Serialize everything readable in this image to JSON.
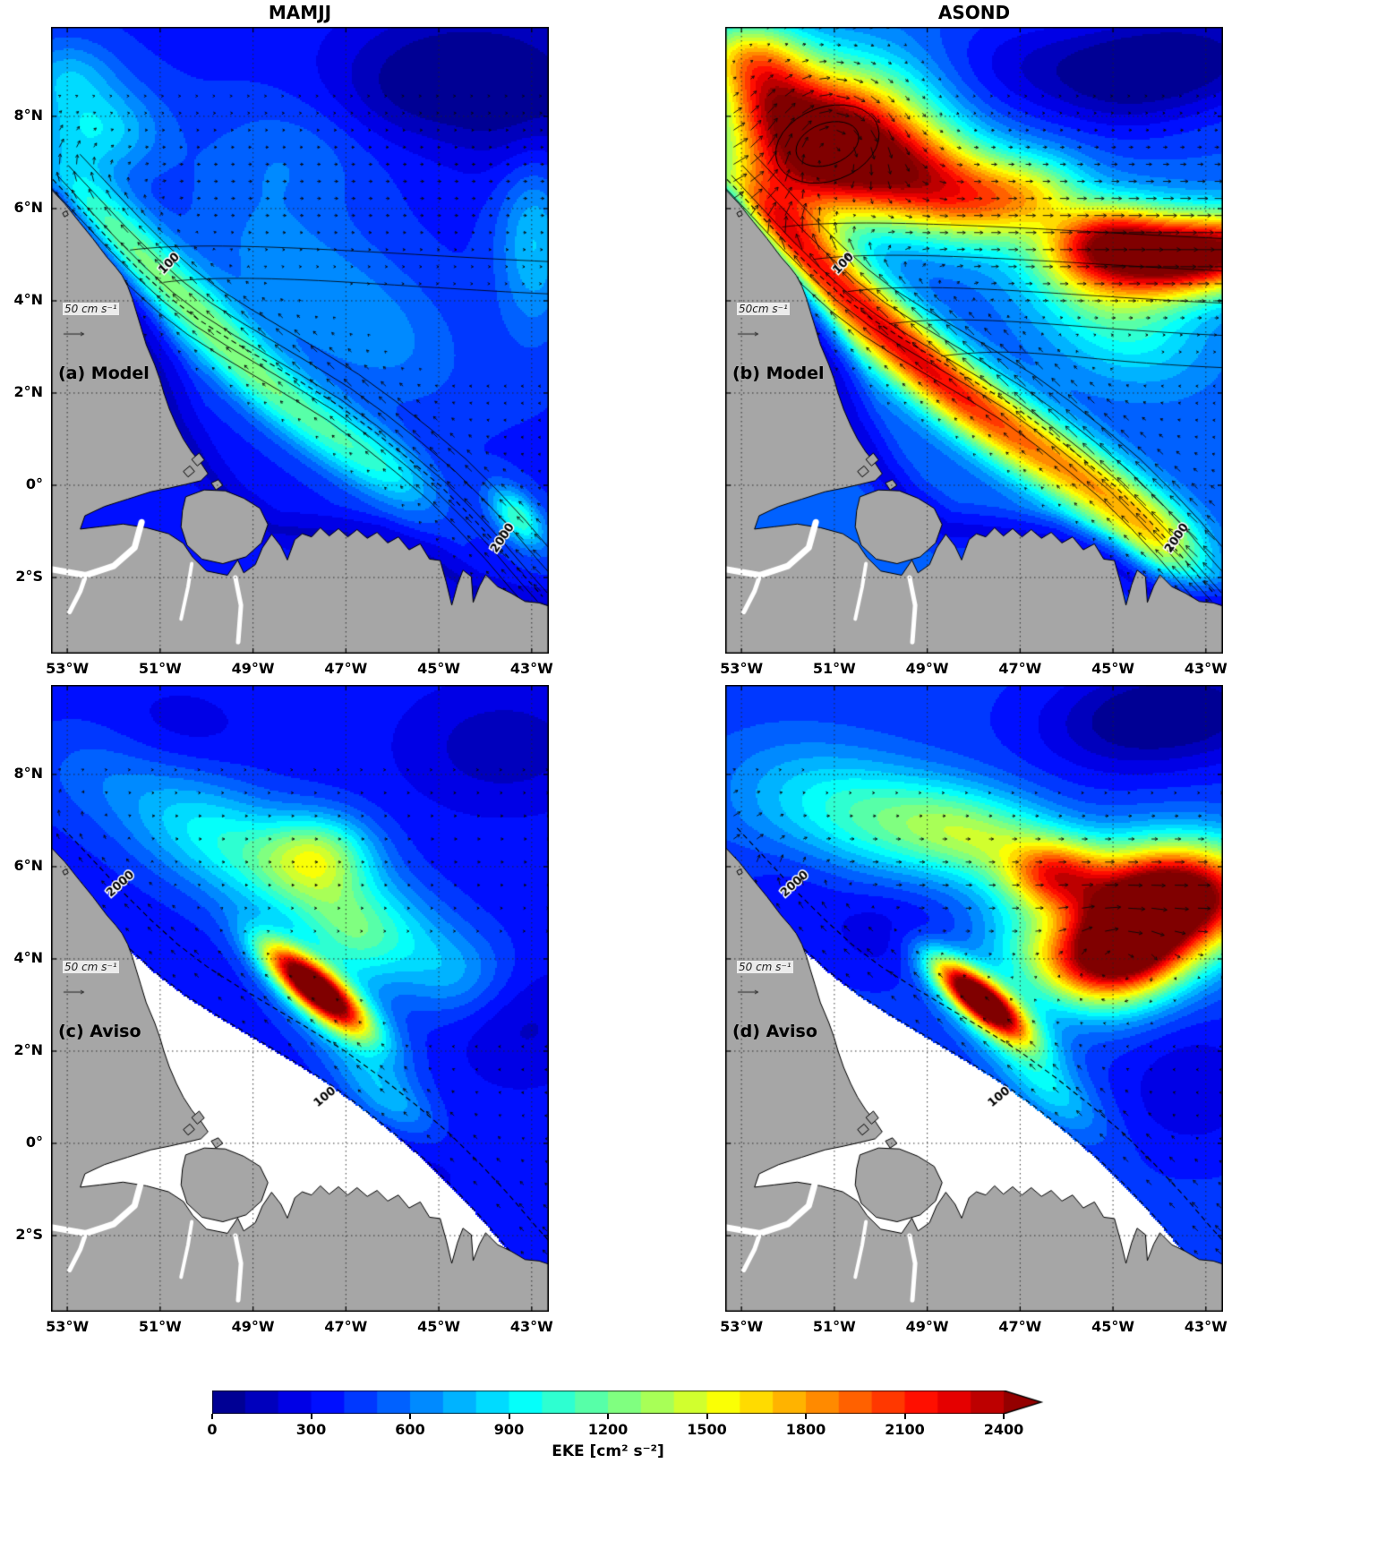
{
  "figure": {
    "column_titles": [
      "MAMJJ",
      "ASOND"
    ],
    "axes": {
      "lon_ticks": [
        "53°W",
        "51°W",
        "49°W",
        "47°W",
        "45°W",
        "43°W"
      ],
      "lon_values": [
        -53,
        -51,
        -49,
        -47,
        -45,
        -43
      ],
      "lat_ticks": [
        "8°N",
        "6°N",
        "4°N",
        "2°N",
        "0°",
        "2°S"
      ],
      "lat_values": [
        8,
        6,
        4,
        2,
        0,
        -2
      ]
    },
    "colorbar": {
      "label": "EKE [cm² s⁻²]",
      "ticks": [
        0,
        300,
        600,
        900,
        1200,
        1500,
        1800,
        2100,
        2400
      ],
      "vmin": 0,
      "vmax": 2400,
      "level_step": 100,
      "extend": "max"
    },
    "colors": {
      "land": "#a6a6a6",
      "coastline": "#000000",
      "no_data": "#ffffff",
      "grid": "#222222",
      "arrow": "#0a0a0a"
    }
  },
  "chart_data": {
    "type": "heatmap",
    "variable": "EKE",
    "units": "cm² s⁻²",
    "colormap": "jet",
    "lon_range": [
      -53.35,
      -42.63
    ],
    "lat_range": [
      -3.65,
      9.94
    ],
    "seasons": [
      "MAMJJ",
      "ASOND"
    ],
    "datasets": [
      "Model",
      "Aviso"
    ],
    "panels": [
      {
        "id": "a",
        "row": 0,
        "col": 0,
        "label": "(a) Model",
        "season": "MAMJJ",
        "dataset": "Model",
        "scale_label": "50 cm s⁻¹",
        "scale_value_cm_s": 50,
        "mask_shelf": false,
        "base_eke": 380,
        "arrow_step": 0.37,
        "contour_labels": [
          {
            "text": "100",
            "lon": -50.8,
            "lat": 4.8,
            "rot": -46
          },
          {
            "text": "2000",
            "lon": -43.62,
            "lat": -1.15,
            "rot": -56
          }
        ],
        "east_lines": [
          4.4,
          5.1
        ],
        "features": [
          [
            -52.55,
            6.2,
            0.8,
            0.45,
            137,
            420
          ],
          [
            -51.7,
            5.3,
            0.8,
            0.45,
            137,
            470
          ],
          [
            -50.9,
            4.45,
            0.85,
            0.45,
            137,
            450
          ],
          [
            -50.1,
            3.6,
            0.85,
            0.45,
            137,
            490
          ],
          [
            -49.3,
            2.75,
            0.85,
            0.45,
            137,
            450
          ],
          [
            -48.5,
            2.0,
            0.85,
            0.45,
            137,
            420
          ],
          [
            -47.6,
            1.3,
            0.85,
            0.45,
            137,
            390
          ],
          [
            -46.7,
            0.7,
            0.85,
            0.45,
            137,
            370
          ],
          [
            -45.8,
            0.2,
            0.85,
            0.45,
            137,
            340
          ],
          [
            -52.4,
            7.7,
            0.95,
            0.7,
            0,
            500
          ],
          [
            -53.0,
            8.9,
            0.7,
            0.55,
            0,
            340
          ],
          [
            -48.4,
            4.8,
            1.7,
            1.1,
            150,
            230
          ],
          [
            -46.3,
            3.2,
            1.5,
            1.0,
            150,
            220
          ],
          [
            -48.2,
            7.2,
            1.3,
            0.9,
            0,
            190
          ],
          [
            -42.95,
            5.3,
            1.4,
            0.55,
            90,
            430
          ],
          [
            -43.3,
            -0.7,
            0.55,
            0.3,
            130,
            720
          ],
          [
            -44.3,
            9.2,
            1.9,
            1.0,
            0,
            -300
          ],
          [
            -42.9,
            7.8,
            1.2,
            1.0,
            0,
            -230
          ],
          [
            -45.6,
            8.4,
            1.3,
            0.8,
            0,
            -170
          ]
        ],
        "circulation": {
          "jet": 26,
          "jet_center": 0.85,
          "jet_width": 0.6,
          "retro_lat": 5.2,
          "retro_frac": 0.55,
          "necc": 9,
          "necc_lat": 6.4,
          "necc_width": 1.2,
          "sec": 5,
          "east_jet": null,
          "vortices": []
        }
      },
      {
        "id": "b",
        "row": 0,
        "col": 1,
        "label": "(b) Model",
        "season": "ASOND",
        "dataset": "Model",
        "scale_label": "50cm s⁻¹",
        "scale_value_cm_s": 50,
        "mask_shelf": false,
        "base_eke": 520,
        "arrow_step": 0.37,
        "contour_labels": [
          {
            "text": "100",
            "lon": -50.8,
            "lat": 4.8,
            "rot": -46
          },
          {
            "text": "2000",
            "lon": -43.62,
            "lat": -1.15,
            "rot": -56
          }
        ],
        "east_lines": [
          2.8,
          3.5,
          4.2,
          4.9,
          5.6
        ],
        "features": [
          [
            -51.15,
            7.4,
            1.35,
            1.05,
            15,
            2300
          ],
          [
            -52.4,
            8.5,
            0.75,
            0.7,
            0,
            950
          ],
          [
            -52.95,
            9.35,
            0.8,
            0.55,
            0,
            800
          ],
          [
            -49.3,
            6.7,
            1.0,
            0.75,
            0,
            1150
          ],
          [
            -47.9,
            6.15,
            0.95,
            0.7,
            0,
            1000
          ],
          [
            -46.6,
            6.3,
            0.8,
            0.6,
            0,
            650
          ],
          [
            -43.3,
            5.0,
            1.6,
            0.6,
            5,
            2250
          ],
          [
            -45.2,
            5.4,
            0.9,
            0.55,
            10,
            1100
          ],
          [
            -52.35,
            5.75,
            0.85,
            0.5,
            137,
            750
          ],
          [
            -51.5,
            4.9,
            0.85,
            0.5,
            137,
            820
          ],
          [
            -50.65,
            4.05,
            0.9,
            0.5,
            137,
            900
          ],
          [
            -49.8,
            3.25,
            0.9,
            0.5,
            137,
            900
          ],
          [
            -48.95,
            2.5,
            0.9,
            0.5,
            137,
            850
          ],
          [
            -48.1,
            1.8,
            0.9,
            0.5,
            137,
            800
          ],
          [
            -47.2,
            1.15,
            0.9,
            0.5,
            137,
            720
          ],
          [
            -46.3,
            0.55,
            0.9,
            0.5,
            137,
            650
          ],
          [
            -45.4,
            0.0,
            0.9,
            0.5,
            137,
            600
          ],
          [
            -44.6,
            -0.6,
            0.9,
            0.5,
            137,
            600
          ],
          [
            -43.8,
            -1.2,
            0.8,
            0.5,
            137,
            650
          ],
          [
            -44.9,
            3.7,
            1.3,
            0.9,
            155,
            550
          ],
          [
            -43.2,
            9.3,
            1.5,
            0.8,
            0,
            -430
          ],
          [
            -44.8,
            8.7,
            1.2,
            0.8,
            0,
            -300
          ],
          [
            -46.9,
            9.1,
            1.4,
            0.8,
            0,
            -260
          ]
        ],
        "circulation": {
          "jet": 40,
          "jet_center": 0.85,
          "jet_width": 0.7,
          "retro_lat": 4.2,
          "retro_frac": 0.85,
          "necc": 20,
          "necc_lat": 5.8,
          "necc_width": 1.3,
          "sec": 4,
          "east_jet": [
            -43.8,
            5.0,
            2.0,
            0.75,
            26
          ],
          "vortices": [
            [
              -51.15,
              7.4,
              1.15,
              -58
            ]
          ]
        }
      },
      {
        "id": "c",
        "row": 1,
        "col": 0,
        "label": "(c) Aviso",
        "season": "MAMJJ",
        "dataset": "Aviso",
        "scale_label": "50 cm s⁻¹",
        "scale_value_cm_s": 50,
        "mask_shelf": true,
        "base_eke": 350,
        "arrow_step": 0.5,
        "contour_labels": [
          {
            "text": "2000",
            "lon": -51.85,
            "lat": 5.62,
            "rot": -42
          },
          {
            "text": "100",
            "lon": -47.45,
            "lat": 1.0,
            "rot": -40
          }
        ],
        "east_lines": [],
        "features": [
          [
            -50.4,
            7.0,
            1.3,
            0.8,
            160,
            380
          ],
          [
            -48.8,
            6.1,
            1.3,
            0.8,
            160,
            430
          ],
          [
            -47.2,
            5.2,
            1.2,
            0.75,
            160,
            400
          ],
          [
            -45.9,
            4.5,
            1.1,
            0.7,
            160,
            330
          ],
          [
            -47.55,
            6.3,
            0.8,
            0.6,
            0,
            700
          ],
          [
            -52.4,
            8.2,
            1.1,
            0.8,
            0,
            170
          ],
          [
            -47.7,
            3.4,
            0.95,
            0.3,
            140,
            2250
          ],
          [
            -47.3,
            2.95,
            1.1,
            0.5,
            140,
            600
          ],
          [
            -46.1,
            1.0,
            1.0,
            0.42,
            140,
            420
          ],
          [
            -46.9,
            4.3,
            0.8,
            0.6,
            140,
            320
          ],
          [
            -44.6,
            3.6,
            0.85,
            0.65,
            0,
            280
          ],
          [
            -43.6,
            8.6,
            1.4,
            0.9,
            0,
            -220
          ],
          [
            -43.2,
            2.6,
            1.0,
            0.9,
            0,
            -170
          ],
          [
            -45.6,
            -0.3,
            1.1,
            0.7,
            0,
            -120
          ],
          [
            -50.9,
            8.9,
            1.2,
            0.7,
            0,
            -120
          ]
        ],
        "circulation": {
          "jet": 15,
          "jet_center": 0.8,
          "jet_width": 0.6,
          "retro_lat": 5.4,
          "retro_frac": 0.5,
          "necc": 7,
          "necc_lat": 6.3,
          "necc_width": 1.3,
          "sec": 5,
          "east_jet": null,
          "vortices": []
        }
      },
      {
        "id": "d",
        "row": 1,
        "col": 1,
        "label": "(d) Aviso",
        "season": "ASOND",
        "dataset": "Aviso",
        "scale_label": "50 cm s⁻¹",
        "scale_value_cm_s": 50,
        "mask_shelf": true,
        "base_eke": 430,
        "arrow_step": 0.5,
        "contour_labels": [
          {
            "text": "2000",
            "lon": -51.85,
            "lat": 5.62,
            "rot": -42
          },
          {
            "text": "100",
            "lon": -47.45,
            "lat": 1.0,
            "rot": -40
          }
        ],
        "east_lines": [],
        "features": [
          [
            -51.6,
            7.5,
            1.4,
            0.9,
            170,
            330
          ],
          [
            -49.9,
            7.0,
            1.2,
            0.8,
            170,
            470
          ],
          [
            -48.4,
            6.8,
            1.0,
            0.7,
            170,
            560
          ],
          [
            -47.1,
            6.4,
            0.95,
            0.7,
            170,
            520
          ],
          [
            -46.25,
            5.8,
            0.75,
            0.55,
            0,
            1150
          ],
          [
            -43.6,
            5.4,
            1.4,
            0.8,
            0,
            2150
          ],
          [
            -44.9,
            4.1,
            0.95,
            0.7,
            0,
            1900
          ],
          [
            -44.3,
            4.8,
            1.1,
            0.8,
            0,
            700
          ],
          [
            -47.9,
            3.15,
            0.85,
            0.28,
            140,
            2150
          ],
          [
            -47.5,
            2.85,
            1.0,
            0.48,
            140,
            700
          ],
          [
            -46.4,
            1.2,
            0.95,
            0.4,
            140,
            430
          ],
          [
            -46.3,
            3.9,
            1.1,
            0.6,
            150,
            600
          ],
          [
            -43.3,
            9.4,
            1.4,
            0.75,
            0,
            -380
          ],
          [
            -45.0,
            9.0,
            1.3,
            0.75,
            0,
            -240
          ],
          [
            -49.9,
            4.6,
            0.95,
            0.7,
            0,
            -190
          ],
          [
            -43.3,
            1.2,
            1.1,
            1.0,
            0,
            -220
          ],
          [
            -51.9,
            5.6,
            0.9,
            0.7,
            0,
            -100
          ]
        ],
        "circulation": {
          "jet": 20,
          "jet_center": 0.8,
          "jet_width": 0.6,
          "retro_lat": 4.5,
          "retro_frac": 0.7,
          "necc": 14,
          "necc_lat": 5.7,
          "necc_width": 1.2,
          "sec": 4,
          "east_jet": [
            -44.0,
            5.2,
            1.8,
            0.8,
            20
          ],
          "vortices": [
            [
              -44.9,
              4.1,
              0.8,
              -26
            ]
          ]
        }
      }
    ]
  }
}
